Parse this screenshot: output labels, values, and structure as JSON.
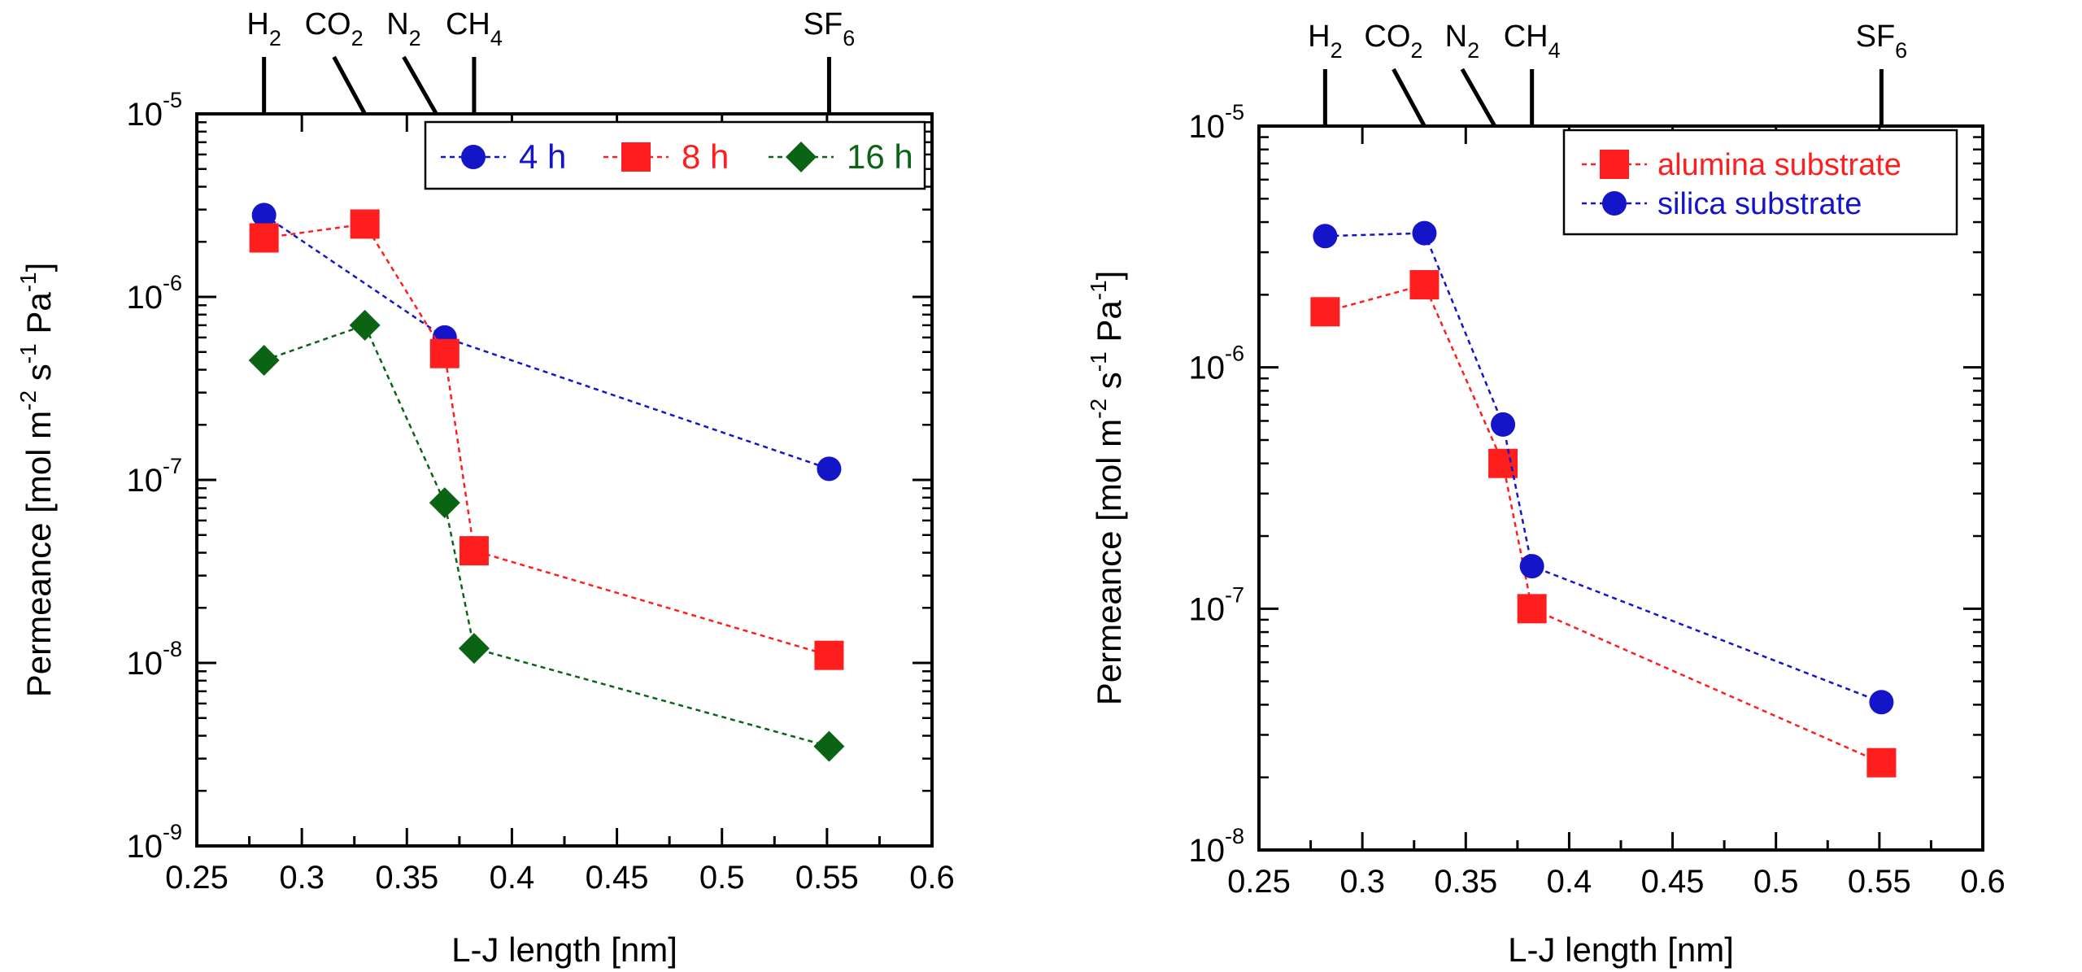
{
  "chart_data": [
    {
      "type": "scatter",
      "xlabel": "L-J length [nm]",
      "ylabel": {
        "pre1": "Permeance [mol m",
        "exp1": "-2",
        "pre2": " s",
        "exp2": "-1",
        "pre3": " Pa",
        "exp3": "-1",
        "post": "]"
      },
      "xlim": [
        0.25,
        0.6
      ],
      "ylim": [
        1e-09,
        1e-05
      ],
      "log_y": true,
      "x_ticks": [
        "0.25",
        "0.3",
        "0.35",
        "0.4",
        "0.45",
        "0.5",
        "0.55",
        "0.6"
      ],
      "y_ticks": [
        {
          "base": "10",
          "exp": "-9"
        },
        {
          "base": "10",
          "exp": "-8"
        },
        {
          "base": "10",
          "exp": "-7"
        },
        {
          "base": "10",
          "exp": "-6"
        },
        {
          "base": "10",
          "exp": "-5"
        }
      ],
      "top_axis_labels": [
        {
          "base": "H",
          "sub": "2",
          "x": 0.282
        },
        {
          "base": "CO",
          "sub": "2",
          "x": 0.33
        },
        {
          "base": "N",
          "sub": "2",
          "x": 0.364
        },
        {
          "base": "CH",
          "sub": "4",
          "x": 0.382
        },
        {
          "base": "SF",
          "sub": "6",
          "x": 0.551
        }
      ],
      "legend_position": "top-right",
      "series": [
        {
          "name": "4 h",
          "color": "#1414c8",
          "marker": "circle",
          "x": [
            0.282,
            0.368,
            0.551
          ],
          "y": [
            2.8e-06,
            6e-07,
            1.15e-07
          ]
        },
        {
          "name": "8 h",
          "color": "#ff1e1e",
          "marker": "square",
          "x": [
            0.282,
            0.33,
            0.368,
            0.382,
            0.551
          ],
          "y": [
            2.1e-06,
            2.5e-06,
            4.9e-07,
            4.1e-08,
            1.1e-08
          ]
        },
        {
          "name": "16 h",
          "color": "#0a6414",
          "marker": "diamond",
          "x": [
            0.282,
            0.33,
            0.368,
            0.382,
            0.551
          ],
          "y": [
            4.5e-07,
            7e-07,
            7.5e-08,
            1.2e-08,
            3.5e-09
          ]
        }
      ]
    },
    {
      "type": "scatter",
      "xlabel": "L-J length [nm]",
      "ylabel": {
        "pre1": "Permeance [mol m",
        "exp1": "-2",
        "pre2": " s",
        "exp2": "-1",
        "pre3": " Pa",
        "exp3": "-1",
        "post": "]"
      },
      "xlim": [
        0.25,
        0.6
      ],
      "ylim": [
        1e-08,
        1e-05
      ],
      "log_y": true,
      "x_ticks": [
        "0.25",
        "0.3",
        "0.35",
        "0.4",
        "0.45",
        "0.5",
        "0.55",
        "0.6"
      ],
      "y_ticks": [
        {
          "base": "10",
          "exp": "-8"
        },
        {
          "base": "10",
          "exp": "-7"
        },
        {
          "base": "10",
          "exp": "-6"
        },
        {
          "base": "10",
          "exp": "-5"
        }
      ],
      "top_axis_labels": [
        {
          "base": "H",
          "sub": "2",
          "x": 0.282
        },
        {
          "base": "CO",
          "sub": "2",
          "x": 0.33
        },
        {
          "base": "N",
          "sub": "2",
          "x": 0.364
        },
        {
          "base": "CH",
          "sub": "4",
          "x": 0.382
        },
        {
          "base": "SF",
          "sub": "6",
          "x": 0.551
        }
      ],
      "legend_position": "top-right",
      "series": [
        {
          "name": "alumina substrate",
          "color": "#ff1e1e",
          "marker": "square",
          "x": [
            0.282,
            0.33,
            0.368,
            0.382,
            0.551
          ],
          "y": [
            1.7e-06,
            2.2e-06,
            4e-07,
            1e-07,
            2.3e-08
          ]
        },
        {
          "name": "silica substrate",
          "color": "#1414c8",
          "marker": "circle",
          "x": [
            0.282,
            0.33,
            0.368,
            0.382,
            0.551
          ],
          "y": [
            3.5e-06,
            3.6e-06,
            5.8e-07,
            1.5e-07,
            4.1e-08
          ]
        }
      ]
    }
  ]
}
